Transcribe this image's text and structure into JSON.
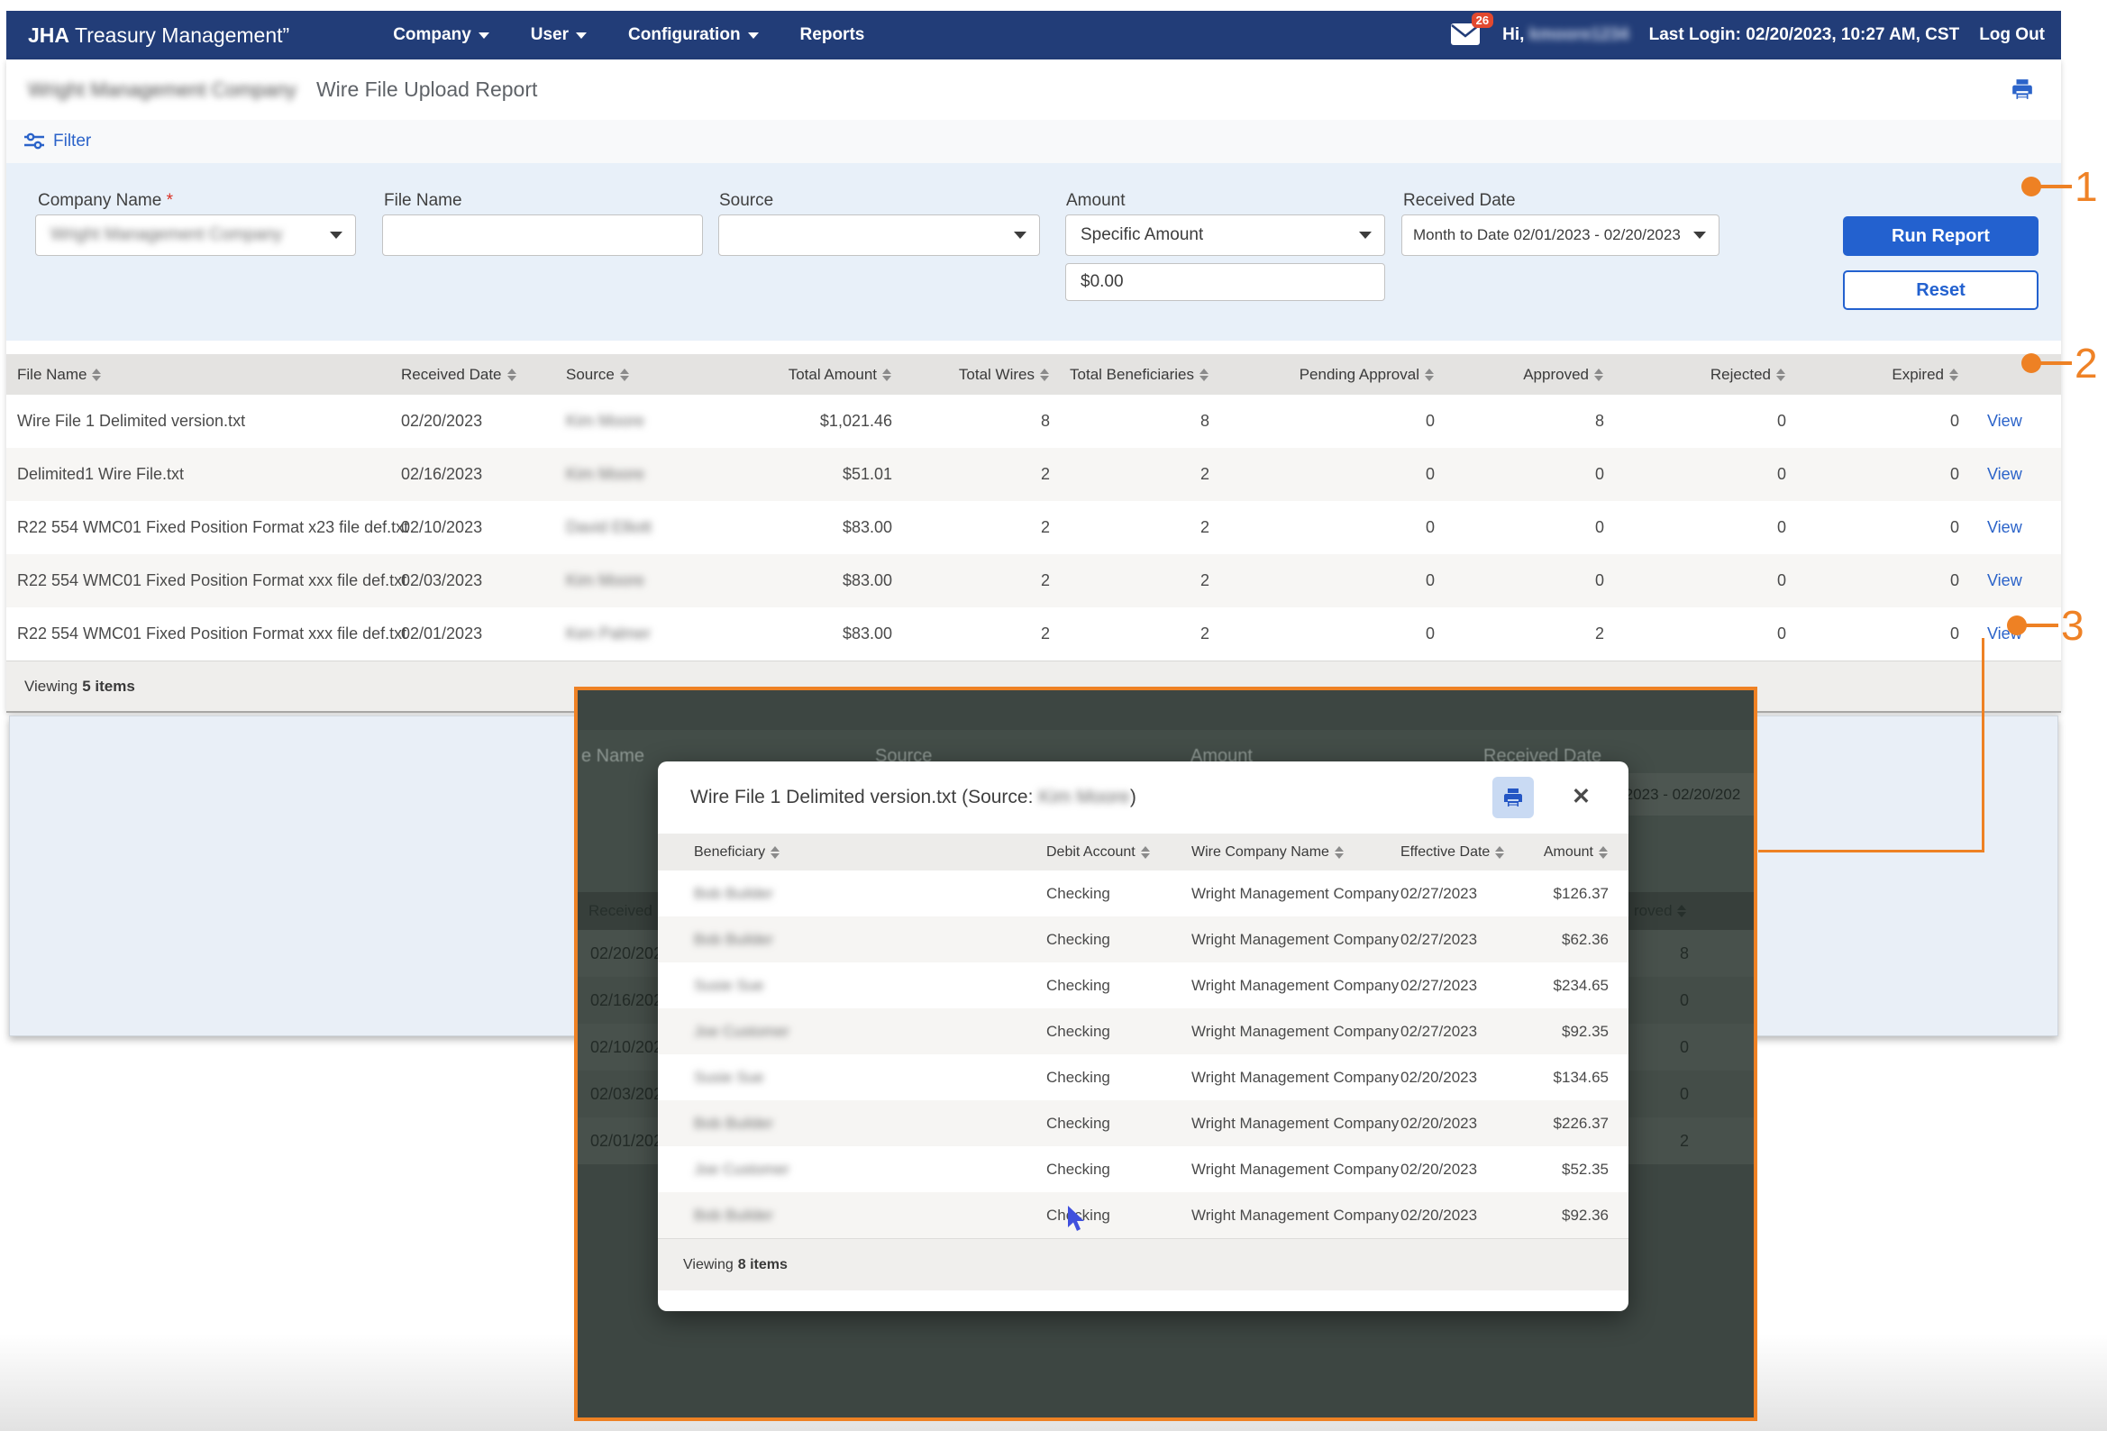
{
  "navbar": {
    "brand_bold": "JHA",
    "brand_rest": "Treasury Management”",
    "menu": [
      "Company",
      "User",
      "Configuration",
      "Reports"
    ],
    "mail_badge": "26",
    "greeting": "Hi,",
    "user_redacted": "kmoore1234",
    "last_login": "Last Login: 02/20/2023, 10:27 AM, CST",
    "logout": "Log Out"
  },
  "page_header": {
    "company_redacted": "Wright Management Company",
    "title": "Wire File Upload Report"
  },
  "filter": {
    "label": "Filter",
    "company_label": "Company Name",
    "company_required_mark": "*",
    "company_value_redacted": "Wright Management Company",
    "file_name_label": "File Name",
    "file_name_value": "",
    "source_label": "Source",
    "source_value": "",
    "amount_label": "Amount",
    "amount_type_value": "Specific Amount",
    "amount_value": "$0.00",
    "received_date_label": "Received Date",
    "received_date_value": "Month to Date  02/01/2023 - 02/20/2023",
    "run_report": "Run Report",
    "reset": "Reset"
  },
  "table": {
    "columns": [
      "File Name",
      "Received Date",
      "Source",
      "Total Amount",
      "Total Wires",
      "Total Beneficiaries",
      "Pending Approval",
      "Approved",
      "Rejected",
      "Expired"
    ],
    "rows": [
      {
        "file": "Wire File 1 Delimited version.txt",
        "date": "02/20/2023",
        "source_redacted": "Kim Moore",
        "amount": "$1,021.46",
        "wires": "8",
        "beneficiaries": "8",
        "pending": "0",
        "approved": "8",
        "rejected": "0",
        "expired": "0",
        "action": "View"
      },
      {
        "file": "Delimited1 Wire File.txt",
        "date": "02/16/2023",
        "source_redacted": "Kim Moore",
        "amount": "$51.01",
        "wires": "2",
        "beneficiaries": "2",
        "pending": "0",
        "approved": "0",
        "rejected": "0",
        "expired": "0",
        "action": "View"
      },
      {
        "file": "R22 554 WMC01 Fixed Position Format x23 file def.txt",
        "date": "02/10/2023",
        "source_redacted": "David Elliott",
        "amount": "$83.00",
        "wires": "2",
        "beneficiaries": "2",
        "pending": "0",
        "approved": "0",
        "rejected": "0",
        "expired": "0",
        "action": "View"
      },
      {
        "file": "R22 554 WMC01 Fixed Position Format xxx file def.txt",
        "date": "02/03/2023",
        "source_redacted": "Kim Moore",
        "amount": "$83.00",
        "wires": "2",
        "beneficiaries": "2",
        "pending": "0",
        "approved": "0",
        "rejected": "0",
        "expired": "0",
        "action": "View"
      },
      {
        "file": "R22 554 WMC01 Fixed Position Format xxx file def.txt",
        "date": "02/01/2023",
        "source_redacted": "Ken Palmer",
        "amount": "$83.00",
        "wires": "2",
        "beneficiaries": "2",
        "pending": "0",
        "approved": "2",
        "rejected": "0",
        "expired": "0",
        "action": "View"
      }
    ],
    "viewing_prefix": "Viewing",
    "viewing_count": "5 items"
  },
  "modal": {
    "title_prefix": "Wire File 1 Delimited version.txt (Source: ",
    "title_source_redacted": "Kim Moore",
    "title_suffix": ")",
    "columns": [
      "Beneficiary",
      "Debit Account",
      "Wire Company Name",
      "Effective Date",
      "Amount"
    ],
    "rows": [
      {
        "beneficiary_redacted": "Bob Builder",
        "debit": "Checking",
        "company": "Wright Management Company",
        "effective": "02/27/2023",
        "amount": "$126.37"
      },
      {
        "beneficiary_redacted": "Bob Builder",
        "debit": "Checking",
        "company": "Wright Management Company",
        "effective": "02/27/2023",
        "amount": "$62.36"
      },
      {
        "beneficiary_redacted": "Susie Sue",
        "debit": "Checking",
        "company": "Wright Management Company",
        "effective": "02/27/2023",
        "amount": "$234.65"
      },
      {
        "beneficiary_redacted": "Joe Customer",
        "debit": "Checking",
        "company": "Wright Management Company",
        "effective": "02/27/2023",
        "amount": "$92.35"
      },
      {
        "beneficiary_redacted": "Susie Sue",
        "debit": "Checking",
        "company": "Wright Management Company",
        "effective": "02/20/2023",
        "amount": "$134.65"
      },
      {
        "beneficiary_redacted": "Bob Builder",
        "debit": "Checking",
        "company": "Wright Management Company",
        "effective": "02/20/2023",
        "amount": "$226.37"
      },
      {
        "beneficiary_redacted": "Joe Customer",
        "debit": "Checking",
        "company": "Wright Management Company",
        "effective": "02/20/2023",
        "amount": "$52.35"
      },
      {
        "beneficiary_redacted": "Bob Builder",
        "debit": "Checking",
        "company": "Wright Management Company",
        "effective": "02/20/2023",
        "amount": "$92.36"
      }
    ],
    "viewing_prefix": "Viewing",
    "viewing_count": "8 items"
  },
  "replica": {
    "filter_labels": [
      "e Name",
      "Source",
      "Amount",
      "Received Date"
    ],
    "dropdown_fragment": "/2023 - 02/20/202",
    "received_header": "Received Date",
    "approved_header": "roved",
    "dates": [
      "02/20/2023",
      "02/16/2023",
      "02/10/2023",
      "02/03/2023",
      "02/01/2023"
    ],
    "approved_values": [
      "8",
      "0",
      "0",
      "0",
      "2"
    ]
  },
  "annotations": {
    "one": "1",
    "two": "2",
    "three": "3"
  },
  "colors": {
    "navbar": "#223d78",
    "accent_blue": "#2361cf",
    "link_blue": "#2b63c9",
    "annotation_orange": "#ee8124",
    "overlay_dark": "#3d4642",
    "badge_red": "#e2492f",
    "filter_panel": "#e8f0f9"
  }
}
